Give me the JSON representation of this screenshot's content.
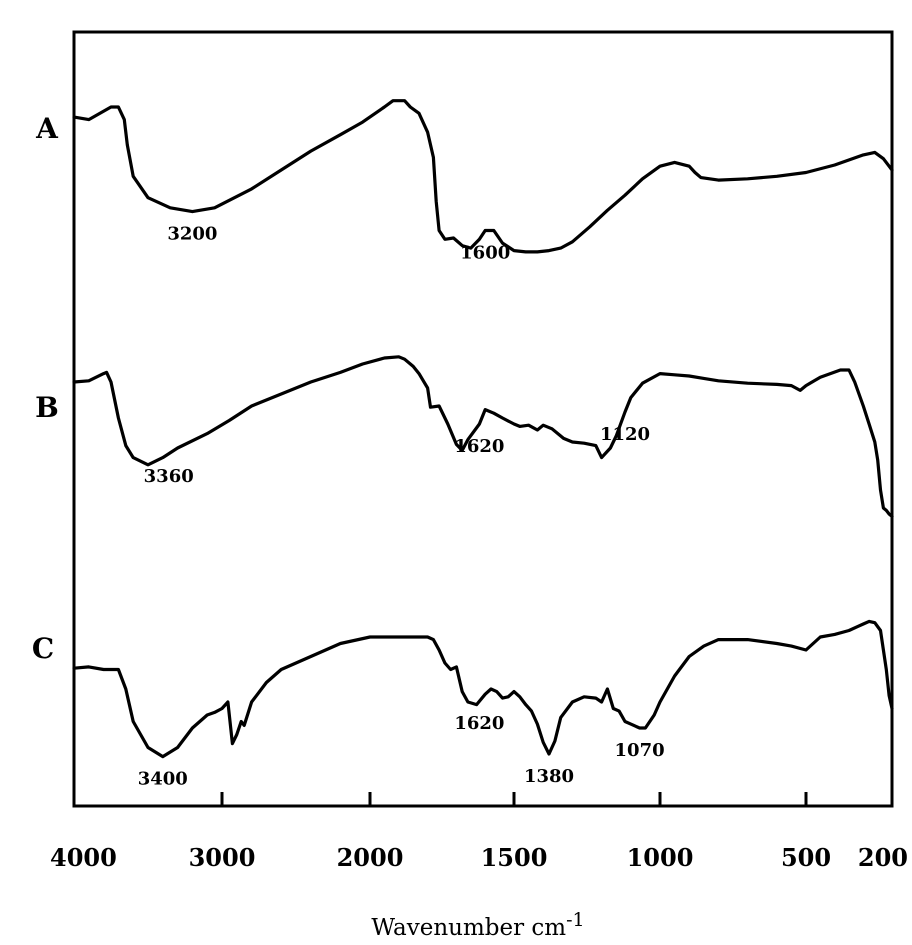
{
  "chart_data": {
    "type": "line",
    "title": "",
    "xlabel": "Wavenumber cm",
    "xlabel_superscript": "-1",
    "xlim": [
      4000,
      200
    ],
    "x_axis_scale": "piecewise (compressed below 2000 cm-1)",
    "y_axis": "offset transmittance, no ticks or labels",
    "grid": false,
    "legend": "none; spectra labeled A, B, C on the left",
    "line_color": "#000000",
    "x_ticks": [
      {
        "value": 4000,
        "label": "4000"
      },
      {
        "value": 3000,
        "label": "3000"
      },
      {
        "value": 2000,
        "label": "2000"
      },
      {
        "value": 1500,
        "label": "1500"
      },
      {
        "value": 1000,
        "label": "1000"
      },
      {
        "value": 500,
        "label": "500"
      },
      {
        "value": 200,
        "label": "200"
      }
    ],
    "series": [
      {
        "name": "A",
        "x": [
          4000,
          3900,
          3750,
          3700,
          3660,
          3640,
          3600,
          3500,
          3350,
          3200,
          3050,
          2800,
          2600,
          2400,
          2200,
          2050,
          1950,
          1920,
          1880,
          1860,
          1830,
          1800,
          1780,
          1770,
          1760,
          1740,
          1710,
          1680,
          1650,
          1620,
          1600,
          1570,
          1540,
          1500,
          1460,
          1420,
          1380,
          1340,
          1300,
          1240,
          1180,
          1120,
          1060,
          1000,
          950,
          900,
          880,
          860,
          800,
          700,
          600,
          500,
          400,
          300,
          260,
          230,
          200
        ],
        "y": [
          14.2,
          14.0,
          15.0,
          15.0,
          14.0,
          12.0,
          9.5,
          7.8,
          7.0,
          6.7,
          7.0,
          8.5,
          10.0,
          11.5,
          12.8,
          13.8,
          15.0,
          15.5,
          15.5,
          15.0,
          14.5,
          13.0,
          11.0,
          7.5,
          5.2,
          4.5,
          4.6,
          4.0,
          3.8,
          4.5,
          5.2,
          5.2,
          4.2,
          3.6,
          3.5,
          3.5,
          3.6,
          3.8,
          4.3,
          5.5,
          6.8,
          8.0,
          9.3,
          10.3,
          10.6,
          10.3,
          9.8,
          9.4,
          9.2,
          9.3,
          9.5,
          9.8,
          10.4,
          11.2,
          11.4,
          10.9,
          10.0
        ],
        "annotations": [
          {
            "x": 3200,
            "label": "3200"
          },
          {
            "x": 1600,
            "label": "1600"
          }
        ]
      },
      {
        "name": "B",
        "x": [
          4000,
          3900,
          3800,
          3780,
          3750,
          3700,
          3650,
          3600,
          3500,
          3400,
          3300,
          3100,
          2950,
          2800,
          2600,
          2400,
          2200,
          2050,
          1950,
          1900,
          1880,
          1850,
          1830,
          1800,
          1790,
          1760,
          1730,
          1700,
          1680,
          1660,
          1620,
          1600,
          1570,
          1540,
          1500,
          1480,
          1450,
          1420,
          1400,
          1370,
          1330,
          1300,
          1260,
          1220,
          1200,
          1170,
          1150,
          1120,
          1100,
          1060,
          1000,
          950,
          900,
          850,
          800,
          700,
          600,
          550,
          520,
          500,
          450,
          380,
          350,
          330,
          300,
          280,
          260,
          250,
          240,
          230,
          220,
          210,
          200
        ],
        "y": [
          14.5,
          14.6,
          15.2,
          15.3,
          14.5,
          11.5,
          9.2,
          8.2,
          7.6,
          8.2,
          9.0,
          10.2,
          11.3,
          12.5,
          13.5,
          14.5,
          15.3,
          16.0,
          16.5,
          16.6,
          16.4,
          15.8,
          15.2,
          14.0,
          12.4,
          12.5,
          11.0,
          9.3,
          8.8,
          9.7,
          11.0,
          12.2,
          11.9,
          11.5,
          11.0,
          10.8,
          10.9,
          10.5,
          10.9,
          10.6,
          9.8,
          9.5,
          9.4,
          9.2,
          8.2,
          9.0,
          10.0,
          12.0,
          13.2,
          14.4,
          15.2,
          15.1,
          15.0,
          14.8,
          14.6,
          14.4,
          14.3,
          14.2,
          13.8,
          14.2,
          14.9,
          15.5,
          15.5,
          14.5,
          12.5,
          11.0,
          9.5,
          8.0,
          5.5,
          4.0,
          3.8,
          3.5,
          3.3
        ],
        "annotations": [
          {
            "x": 3360,
            "label": "3360"
          },
          {
            "x": 1620,
            "label": "1620"
          },
          {
            "x": 1120,
            "label": "1120"
          }
        ]
      },
      {
        "name": "C",
        "x": [
          4000,
          3900,
          3800,
          3700,
          3650,
          3600,
          3500,
          3400,
          3300,
          3200,
          3100,
          3050,
          3000,
          2960,
          2930,
          2900,
          2870,
          2850,
          2800,
          2700,
          2600,
          2400,
          2200,
          2000,
          1900,
          1800,
          1780,
          1760,
          1740,
          1720,
          1700,
          1680,
          1660,
          1630,
          1600,
          1580,
          1560,
          1540,
          1520,
          1500,
          1480,
          1460,
          1440,
          1420,
          1400,
          1380,
          1360,
          1340,
          1300,
          1260,
          1220,
          1200,
          1180,
          1160,
          1140,
          1120,
          1100,
          1070,
          1050,
          1020,
          1000,
          950,
          900,
          850,
          800,
          700,
          600,
          550,
          500,
          450,
          400,
          350,
          320,
          300,
          280,
          260,
          240,
          230,
          220,
          210,
          200
        ],
        "y": [
          14.6,
          14.7,
          14.5,
          14.5,
          13.0,
          10.5,
          8.5,
          7.8,
          8.5,
          10.0,
          11.0,
          11.2,
          11.5,
          12.0,
          8.8,
          9.5,
          10.5,
          10.2,
          12.0,
          13.5,
          14.5,
          15.5,
          16.5,
          17.0,
          17.0,
          17.0,
          16.8,
          16.0,
          15.0,
          14.5,
          14.7,
          12.8,
          12.0,
          11.8,
          12.6,
          13.0,
          12.8,
          12.3,
          12.4,
          12.8,
          12.4,
          11.8,
          11.3,
          10.3,
          8.9,
          8.0,
          9.0,
          10.8,
          12.0,
          12.4,
          12.3,
          12.0,
          13.0,
          11.5,
          11.3,
          10.5,
          10.3,
          10.0,
          10.0,
          11.0,
          12.0,
          14.0,
          15.5,
          16.3,
          16.8,
          16.8,
          16.5,
          16.3,
          16.0,
          17.0,
          17.2,
          17.5,
          17.8,
          18.0,
          18.2,
          18.1,
          17.5,
          16.0,
          14.5,
          12.5,
          11.5
        ],
        "annotations": [
          {
            "x": 3400,
            "label": "3400"
          },
          {
            "x": 1620,
            "label": "1620"
          },
          {
            "x": 1380,
            "label": "1380"
          },
          {
            "x": 1070,
            "label": "1070"
          }
        ]
      }
    ]
  }
}
